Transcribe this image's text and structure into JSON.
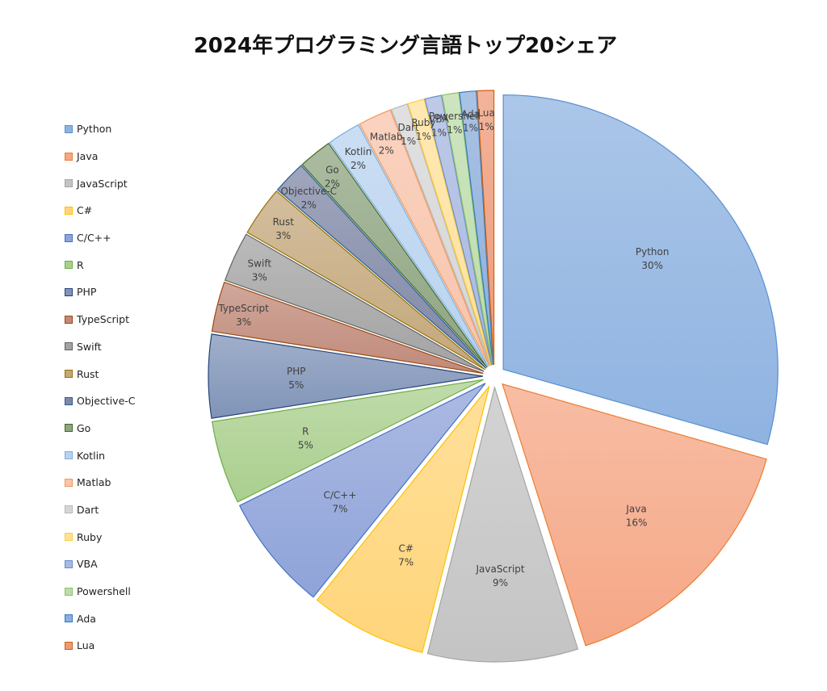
{
  "chart_data": {
    "type": "pie",
    "title": "2024年プログラミング言語トップ20シェア",
    "legend_position": "left",
    "slices": [
      {
        "name": "Python",
        "value": 30,
        "label": "30%",
        "color": "#8FB3E1",
        "edge": "#5B8FD0"
      },
      {
        "name": "Java",
        "value": 16,
        "label": "16%",
        "color": "#F5A786",
        "edge": "#ED7D31"
      },
      {
        "name": "JavaScript",
        "value": 9,
        "label": "9%",
        "color": "#C4C4C4",
        "edge": "#A5A5A5"
      },
      {
        "name": "C#",
        "value": 7,
        "label": "7%",
        "color": "#FFD57A",
        "edge": "#FFC000"
      },
      {
        "name": "C/C++",
        "value": 7,
        "label": "7%",
        "color": "#8FA3D9",
        "edge": "#4472C4"
      },
      {
        "name": "R",
        "value": 5,
        "label": "5%",
        "color": "#AACF8E",
        "edge": "#70AD47"
      },
      {
        "name": "PHP",
        "value": 5,
        "label": "5%",
        "color": "#8094B8",
        "edge": "#264478"
      },
      {
        "name": "TypeScript",
        "value": 3,
        "label": "3%",
        "color": "#C08A7A",
        "edge": "#9E480E"
      },
      {
        "name": "Swift",
        "value": 3,
        "label": "3%",
        "color": "#A3A3A3",
        "edge": "#636363"
      },
      {
        "name": "Rust",
        "value": 3,
        "label": "3%",
        "color": "#C4A87C",
        "edge": "#997300"
      },
      {
        "name": "Objective-C",
        "value": 2,
        "label": "2%",
        "color": "#8088A6",
        "edge": "#255E91"
      },
      {
        "name": "Go",
        "value": 2,
        "label": "2%",
        "color": "#8FA581",
        "edge": "#43682B"
      },
      {
        "name": "Kotlin",
        "value": 2,
        "label": "2%",
        "color": "#B9D3EF",
        "edge": "#7CAFDD"
      },
      {
        "name": "Matlab",
        "value": 2,
        "label": "2%",
        "color": "#F8C4AB",
        "edge": "#F1975A"
      },
      {
        "name": "Dart",
        "value": 1,
        "label": "1%",
        "color": "#D6D6D6",
        "edge": "#B7B7B7"
      },
      {
        "name": "Ruby",
        "value": 1,
        "label": "1%",
        "color": "#FFE19A",
        "edge": "#FFCD33"
      },
      {
        "name": "VBA",
        "value": 1,
        "label": "1%",
        "color": "#A9B8E0",
        "edge": "#698ED0"
      },
      {
        "name": "Powershell",
        "value": 1,
        "label": "1%",
        "color": "#BDDCAA",
        "edge": "#8CC168"
      },
      {
        "name": "Ada",
        "value": 1,
        "label": "1%",
        "color": "#8DAEDB",
        "edge": "#327DC2"
      },
      {
        "name": "Lua",
        "value": 1,
        "label": "1%",
        "color": "#EE9A78",
        "edge": "#D26012"
      }
    ]
  }
}
